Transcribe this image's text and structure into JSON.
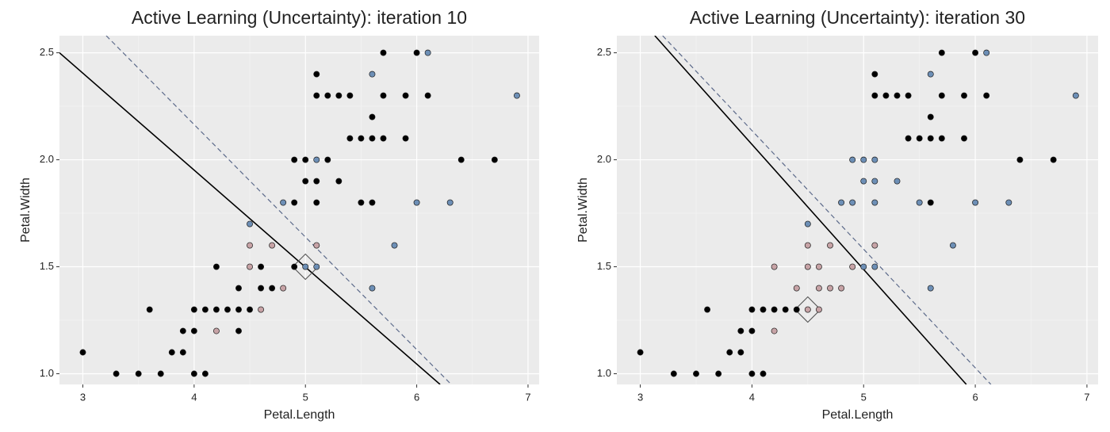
{
  "chart_data": [
    {
      "type": "scatter",
      "title": "Active Learning (Uncertainty): iteration 10",
      "x_label": "Petal.Length",
      "y_label": "Petal.Width",
      "xlim": [
        2.79,
        7.1
      ],
      "ylim": [
        0.95,
        2.58
      ],
      "xticks": [
        3,
        4,
        5,
        6,
        7
      ],
      "yticks": [
        {
          "value": 1,
          "label": "1.0"
        },
        1.5,
        {
          "value": 2,
          "label": "2.0"
        },
        2.5
      ],
      "grid": true,
      "series": [
        {
          "color": "#000000",
          "x": [
            3.0,
            3.3,
            3.5,
            3.7,
            3.6,
            3.8,
            3.9,
            3.9,
            4.0,
            4.0,
            4.0,
            4.1,
            4.1,
            4.2,
            4.2,
            4.3,
            4.4,
            4.4,
            4.4,
            4.5,
            4.6,
            4.6,
            4.7,
            4.9,
            4.9,
            4.9,
            5.0,
            5.0,
            5.1,
            5.1,
            5.1,
            5.1,
            5.2,
            5.2,
            5.3,
            5.3,
            5.4,
            5.4,
            5.5,
            5.5,
            5.6,
            5.6,
            5.6,
            5.7,
            5.7,
            5.7,
            5.9,
            5.9,
            6.0,
            6.1,
            6.4,
            6.7
          ],
          "y": [
            1.1,
            1.0,
            1.0,
            1.0,
            1.3,
            1.1,
            1.1,
            1.2,
            1.0,
            1.2,
            1.3,
            1.0,
            1.3,
            1.3,
            1.5,
            1.3,
            1.2,
            1.3,
            1.4,
            1.3,
            1.4,
            1.5,
            1.4,
            1.5,
            1.8,
            2.0,
            1.9,
            2.0,
            1.8,
            1.9,
            2.3,
            2.4,
            2.0,
            2.3,
            1.9,
            2.3,
            2.1,
            2.3,
            1.8,
            2.1,
            1.8,
            2.1,
            2.2,
            2.1,
            2.3,
            2.5,
            2.1,
            2.3,
            2.5,
            2.3,
            2.0,
            2.0
          ]
        },
        {
          "color": "#c7a3a6",
          "x": [
            4.2,
            4.5,
            4.5,
            4.6,
            4.7,
            4.8,
            5.1
          ],
          "y": [
            1.2,
            1.5,
            1.6,
            1.3,
            1.6,
            1.4,
            1.6
          ]
        },
        {
          "color": "#6d8fb6",
          "x": [
            4.5,
            4.8,
            5.0,
            5.1,
            5.1,
            5.6,
            5.6,
            5.8,
            6.0,
            6.1,
            6.3,
            6.9
          ],
          "y": [
            1.7,
            1.8,
            1.5,
            1.5,
            2.0,
            1.4,
            2.4,
            1.6,
            1.8,
            2.5,
            1.8,
            2.3
          ]
        }
      ],
      "lines": [
        {
          "color": "#000000",
          "dash": false,
          "x": [
            2.79,
            6.21
          ],
          "y": [
            2.5,
            0.95
          ]
        },
        {
          "color": "#5c6a8a",
          "dash": true,
          "x": [
            3.21,
            6.31
          ],
          "y": [
            2.58,
            0.95
          ]
        }
      ],
      "query": {
        "x": 5.0,
        "y": 1.5
      }
    },
    {
      "type": "scatter",
      "title": "Active Learning (Uncertainty): iteration 30",
      "x_label": "Petal.Length",
      "y_label": "Petal.Width",
      "xlim": [
        2.79,
        7.1
      ],
      "ylim": [
        0.95,
        2.58
      ],
      "xticks": [
        3,
        4,
        5,
        6,
        7
      ],
      "yticks": [
        {
          "value": 1,
          "label": "1.0"
        },
        1.5,
        {
          "value": 2,
          "label": "2.0"
        },
        2.5
      ],
      "grid": true,
      "series": [
        {
          "color": "#000000",
          "x": [
            3.0,
            3.3,
            3.5,
            3.7,
            3.6,
            3.8,
            3.9,
            3.9,
            4.0,
            4.0,
            4.0,
            4.1,
            4.1,
            4.2,
            4.3,
            4.4,
            5.1,
            5.1,
            5.2,
            5.3,
            5.4,
            5.4,
            5.5,
            5.6,
            5.6,
            5.6,
            5.7,
            5.7,
            5.7,
            5.9,
            5.9,
            6.0,
            6.1,
            6.4,
            6.7
          ],
          "y": [
            1.1,
            1.0,
            1.0,
            1.0,
            1.3,
            1.1,
            1.1,
            1.2,
            1.0,
            1.2,
            1.3,
            1.0,
            1.3,
            1.3,
            1.3,
            1.3,
            2.3,
            2.4,
            2.3,
            2.3,
            2.1,
            2.3,
            2.1,
            1.8,
            2.1,
            2.2,
            2.1,
            2.3,
            2.5,
            2.1,
            2.3,
            2.5,
            2.3,
            2.0,
            2.0
          ]
        },
        {
          "color": "#c7a3a6",
          "x": [
            4.2,
            4.2,
            4.4,
            4.5,
            4.5,
            4.5,
            4.6,
            4.6,
            4.6,
            4.7,
            4.7,
            4.8,
            4.9,
            5.1
          ],
          "y": [
            1.2,
            1.5,
            1.4,
            1.3,
            1.5,
            1.6,
            1.3,
            1.4,
            1.5,
            1.4,
            1.6,
            1.4,
            1.5,
            1.6
          ]
        },
        {
          "color": "#6d8fb6",
          "x": [
            4.5,
            4.8,
            4.9,
            4.9,
            5.0,
            5.0,
            5.0,
            5.1,
            5.1,
            5.1,
            5.1,
            5.3,
            5.5,
            5.6,
            5.6,
            5.8,
            6.0,
            6.1,
            6.3,
            6.9
          ],
          "y": [
            1.7,
            1.8,
            1.8,
            2.0,
            1.5,
            1.9,
            2.0,
            1.5,
            1.8,
            1.9,
            2.0,
            1.9,
            1.8,
            1.4,
            2.4,
            1.6,
            1.8,
            2.5,
            1.8,
            2.3
          ]
        }
      ],
      "lines": [
        {
          "color": "#000000",
          "dash": false,
          "x": [
            3.13,
            5.92
          ],
          "y": [
            2.58,
            0.95
          ]
        },
        {
          "color": "#5c6a8a",
          "dash": true,
          "x": [
            3.2,
            6.14
          ],
          "y": [
            2.58,
            0.95
          ]
        }
      ],
      "query": {
        "x": 4.5,
        "y": 1.3
      }
    }
  ]
}
